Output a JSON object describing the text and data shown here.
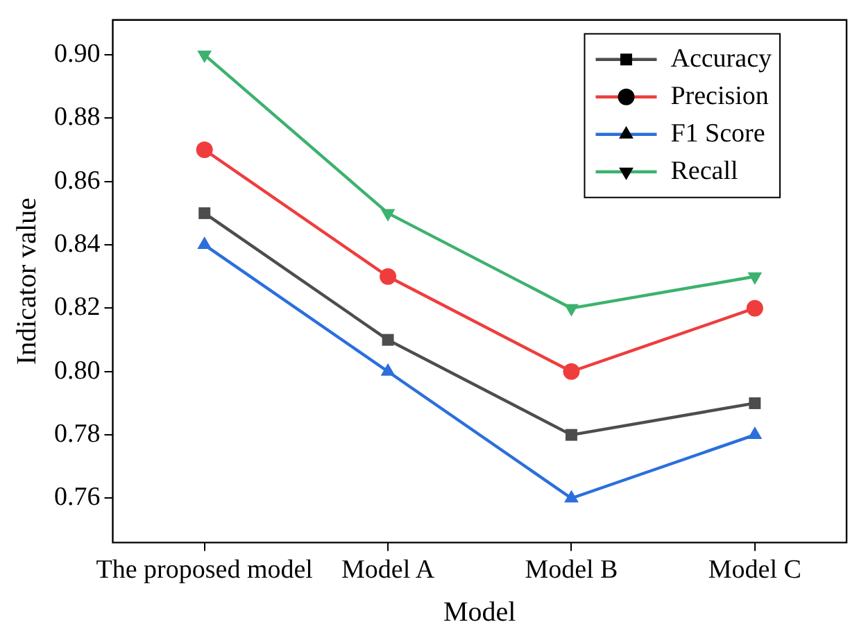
{
  "chart_data": {
    "type": "line",
    "xlabel": "Model",
    "ylabel": "Indicator value",
    "categories": [
      "The proposed model",
      "Model A",
      "Model B",
      "Model C"
    ],
    "series": [
      {
        "name": "Accuracy",
        "color": "#4d4d4d",
        "marker": "square",
        "values": [
          0.85,
          0.81,
          0.78,
          0.79
        ]
      },
      {
        "name": "Precision",
        "color": "#ef3d3d",
        "marker": "circle",
        "values": [
          0.87,
          0.83,
          0.8,
          0.82
        ]
      },
      {
        "name": "F1 Score",
        "color": "#2b6fdc",
        "marker": "triangle",
        "values": [
          0.84,
          0.8,
          0.76,
          0.78
        ]
      },
      {
        "name": "Recall",
        "color": "#3cb26e",
        "marker": "triangle-down",
        "values": [
          0.9,
          0.85,
          0.82,
          0.83
        ]
      }
    ],
    "ylim": [
      0.746,
      0.911
    ],
    "yticks": [
      {
        "value": 0.76,
        "label": "0.76"
      },
      {
        "value": 0.78,
        "label": "0.78"
      },
      {
        "value": 0.8,
        "label": "0.80"
      },
      {
        "value": 0.82,
        "label": "0.82"
      },
      {
        "value": 0.84,
        "label": "0.84"
      },
      {
        "value": 0.86,
        "label": "0.86"
      },
      {
        "value": 0.88,
        "label": "0.88"
      },
      {
        "value": 0.9,
        "label": "0.90"
      }
    ],
    "grid": false,
    "legend": "top right",
    "line_style": "solid"
  }
}
